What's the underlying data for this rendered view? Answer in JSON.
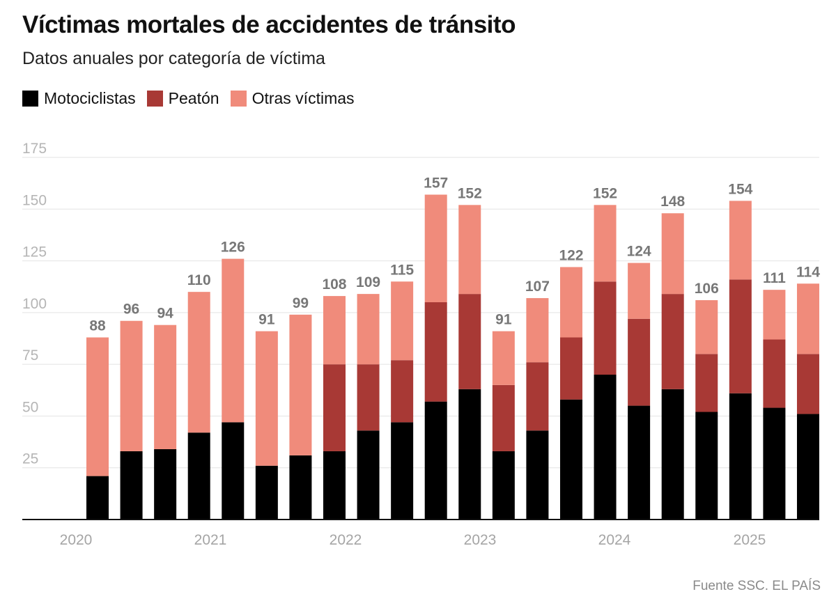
{
  "header": {
    "title": "Víctimas mortales de accidentes de tránsito",
    "subtitle": "Datos anuales por categoría de víctima"
  },
  "footer": {
    "source": "Fuente SSC. EL PAÍS"
  },
  "legend": [
    {
      "label": "Motociclistas",
      "color": "#000000"
    },
    {
      "label": "Peatón",
      "color": "#a83935"
    },
    {
      "label": "Otras víctimas",
      "color": "#f08b7b"
    }
  ],
  "chart_data": {
    "type": "bar",
    "stacked": true,
    "title": "Víctimas mortales de accidentes de tránsito",
    "subtitle": "Datos anuales por categoría de víctima",
    "ylim": [
      0,
      175
    ],
    "yticks": [
      25,
      50,
      75,
      100,
      125,
      150,
      175
    ],
    "x_axis_labels": [
      "2020",
      "2021",
      "2022",
      "2023",
      "2024",
      "2025"
    ],
    "grid": true,
    "legend_position": "top-left",
    "bar_count": 22,
    "series": [
      {
        "name": "Motociclistas",
        "color": "#000000",
        "values": [
          21,
          33,
          34,
          42,
          47,
          26,
          31,
          33,
          43,
          47,
          57,
          63,
          33,
          43,
          58,
          70,
          55,
          63,
          52,
          61,
          54,
          51
        ]
      },
      {
        "name": "Peatón",
        "color": "#a83935",
        "values": [
          0,
          0,
          0,
          0,
          0,
          0,
          0,
          42,
          32,
          30,
          48,
          46,
          32,
          33,
          30,
          45,
          42,
          46,
          28,
          55,
          33,
          29
        ]
      },
      {
        "name": "Otras víctimas",
        "color": "#f08b7b",
        "values": [
          67,
          63,
          60,
          68,
          79,
          65,
          68,
          33,
          34,
          38,
          52,
          43,
          26,
          31,
          34,
          37,
          27,
          39,
          26,
          38,
          24,
          34
        ]
      }
    ],
    "totals": [
      88,
      96,
      94,
      110,
      126,
      91,
      99,
      108,
      109,
      115,
      157,
      152,
      91,
      107,
      122,
      152,
      124,
      148,
      106,
      154,
      111,
      114
    ],
    "source": "Fuente SSC. EL PAÍS"
  }
}
